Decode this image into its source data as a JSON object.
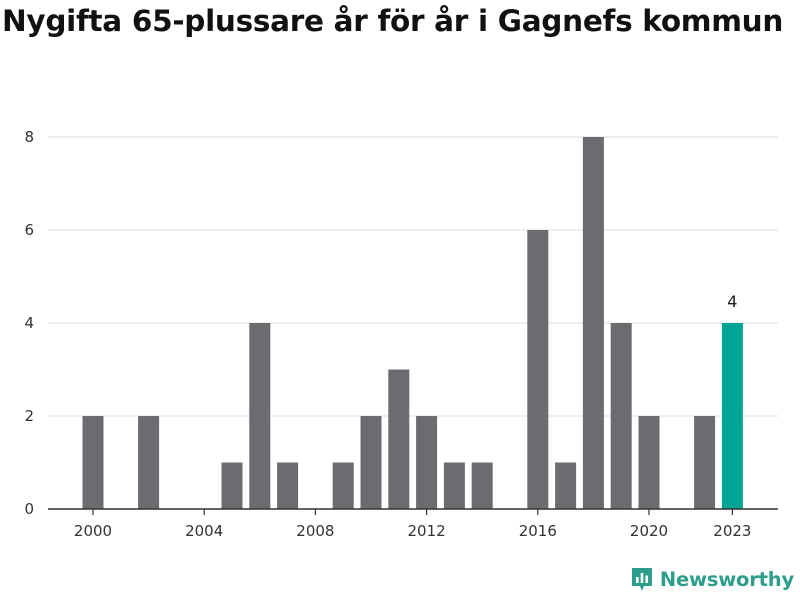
{
  "chart_data": {
    "type": "bar",
    "title": "Nygifta 65-plussare år för år i Gagnefs kommun",
    "xlabel": "",
    "ylabel": "",
    "x": [
      2000,
      2001,
      2002,
      2003,
      2004,
      2005,
      2006,
      2007,
      2008,
      2009,
      2010,
      2011,
      2012,
      2013,
      2014,
      2015,
      2016,
      2017,
      2018,
      2019,
      2020,
      2021,
      2022,
      2023
    ],
    "values": [
      2,
      0,
      2,
      0,
      0,
      1,
      4,
      1,
      0,
      1,
      2,
      3,
      2,
      1,
      1,
      0,
      6,
      1,
      8,
      4,
      2,
      0,
      2,
      4
    ],
    "xticks": [
      "2000",
      "2004",
      "2008",
      "2012",
      "2016",
      "2020",
      "2023"
    ],
    "yticks": [
      "0",
      "2",
      "4",
      "6",
      "8"
    ],
    "ylim": [
      0,
      8.5
    ],
    "grid": true,
    "highlight": {
      "x": 2023,
      "label": "4",
      "color": "#00a495"
    },
    "bar_color": "#6c6b70"
  },
  "brand": {
    "name": "Newsworthy",
    "icon": "newsworthy-logo-icon",
    "color": "#2e9e8c"
  }
}
